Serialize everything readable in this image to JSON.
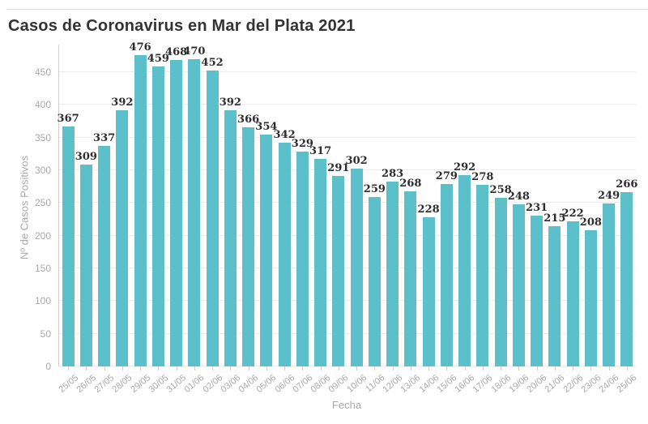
{
  "page": {
    "title": "Casos de Coronavirus en Mar del Plata 2021"
  },
  "chart_data": {
    "type": "bar",
    "title": "Casos de Coronavirus en Mar del Plata 2021",
    "xlabel": "Fecha",
    "ylabel": "Nº de Casos Positivos",
    "categories": [
      "25/05",
      "26/05",
      "27/05",
      "28/05",
      "29/05",
      "30/05",
      "31/05",
      "01/06",
      "02/06",
      "03/06",
      "04/06",
      "05/06",
      "06/06",
      "07/06",
      "08/06",
      "09/06",
      "10/06",
      "11/06",
      "12/06",
      "13/06",
      "14/06",
      "15/06",
      "16/06",
      "17/06",
      "18/06",
      "19/06",
      "20/06",
      "21/06",
      "22/06",
      "23/06",
      "24/06",
      "25/06"
    ],
    "values": [
      367,
      309,
      337,
      392,
      476,
      459,
      468,
      470,
      452,
      392,
      366,
      354,
      342,
      329,
      317,
      291,
      302,
      259,
      283,
      268,
      228,
      279,
      292,
      278,
      258,
      248,
      231,
      215,
      222,
      208,
      249,
      266
    ],
    "yticks": [
      0,
      50,
      100,
      150,
      200,
      250,
      300,
      350,
      400,
      450
    ],
    "ylim": [
      0,
      492
    ],
    "grid": true,
    "legend": false,
    "bar_labels_shown": true,
    "colors": {
      "bar": "#5cc0ca",
      "data_label": "#2d2d2d",
      "tick_label": "#a9a9a9",
      "grid": "#ececec",
      "axis_line": "#cfcfcf",
      "title": "#333333",
      "divider": "#dcdcdc",
      "background": "#ffffff"
    }
  }
}
